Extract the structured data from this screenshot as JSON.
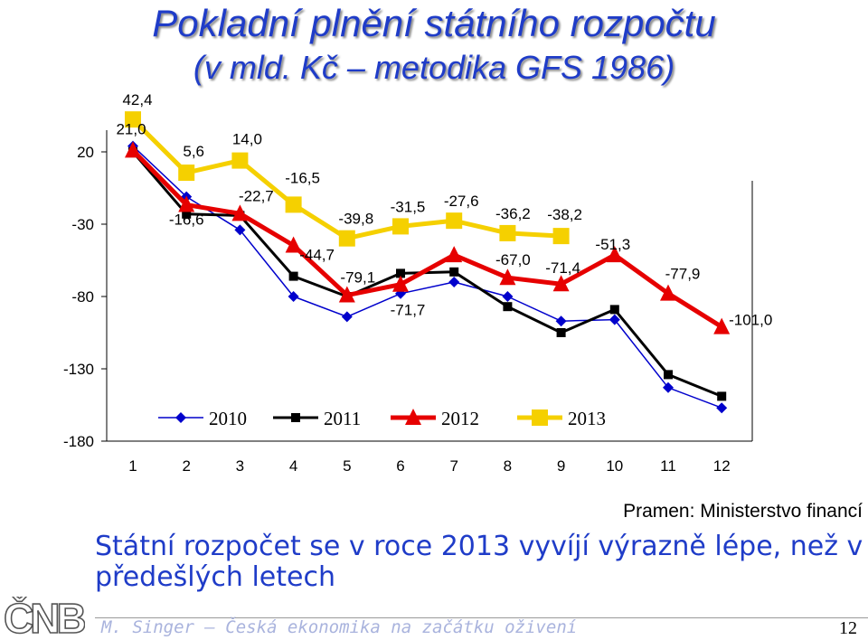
{
  "slide": {
    "title_line1": "Pokladní plnění státního rozpočtu",
    "title_line2": "(v mld. Kč – metodika GFS 1986)",
    "source": "Pramen: Ministerstvo financí",
    "conclusion": "Státní rozpočet se v roce 2013 vyvíjí výrazně lépe, než v předešlých letech",
    "footer": "M. Singer – Česká ekonomika na začátku oživení",
    "page_number": "12",
    "logo_text": "ČNB"
  },
  "chart_data": {
    "type": "line",
    "title": "Pokladní plnění státního rozpočtu",
    "categories": [
      "1",
      "2",
      "3",
      "4",
      "5",
      "6",
      "7",
      "8",
      "9",
      "10",
      "11",
      "12"
    ],
    "y_ticks": [
      20,
      -30,
      -80,
      -130,
      -180
    ],
    "ylim": [
      -180,
      35
    ],
    "grid": false,
    "legend_position": "inside-bottom",
    "series": [
      {
        "name": "2010",
        "color": "#0000cc",
        "marker": "diamond",
        "values": [
          24,
          -11,
          -34,
          -80,
          -94,
          -78,
          -70,
          -80,
          -97,
          -96,
          -143,
          -157
        ]
      },
      {
        "name": "2011",
        "color": "#000000",
        "marker": "square",
        "values": [
          20,
          -23,
          -24,
          -66,
          -80,
          -64,
          -63,
          -87,
          -105,
          -89,
          -134,
          -149
        ]
      },
      {
        "name": "2012",
        "color": "#e60000",
        "marker": "triangle",
        "values": [
          21.0,
          -16.6,
          -22.7,
          -44.7,
          -79.1,
          -71.7,
          -51.3,
          -67.0,
          -71.4,
          -51.3,
          -77.9,
          -101.0
        ]
      },
      {
        "name": "2013",
        "color": "#f5d000",
        "marker": "square",
        "values": [
          42.4,
          5.6,
          14.0,
          -16.5,
          -39.8,
          -31.5,
          -27.6,
          -36.2,
          -38.2,
          null,
          null,
          null
        ]
      }
    ],
    "data_labels": [
      {
        "text": "42,4",
        "x": 1,
        "series": "2013"
      },
      {
        "text": "21,0",
        "x": 1,
        "series": "2012"
      },
      {
        "text": "5,6",
        "x": 2,
        "series": "2013"
      },
      {
        "text": "14,0",
        "x": 3,
        "series": "2013"
      },
      {
        "text": "-16,5",
        "x": 4,
        "series": "2013"
      },
      {
        "text": "-22,7",
        "x": 3,
        "series": "2012"
      },
      {
        "text": "-16,6",
        "x": 2,
        "series": "2012"
      },
      {
        "text": "-44,7",
        "x": 4,
        "series": "2012"
      },
      {
        "text": "-39,8",
        "x": 5,
        "series": "2013"
      },
      {
        "text": "-31,5",
        "x": 6,
        "series": "2013"
      },
      {
        "text": "-27,6",
        "x": 7,
        "series": "2013"
      },
      {
        "text": "-36,2",
        "x": 8,
        "series": "2013"
      },
      {
        "text": "-38,2",
        "x": 9,
        "series": "2013"
      },
      {
        "text": "-51,3",
        "x": 10,
        "series": "2012"
      },
      {
        "text": "-79,1",
        "x": 5,
        "series": "2012"
      },
      {
        "text": "-67,0",
        "x": 8,
        "series": "2012"
      },
      {
        "text": "-71,4",
        "x": 9,
        "series": "2012"
      },
      {
        "text": "-77,9",
        "x": 11,
        "series": "2012"
      },
      {
        "text": "-71,7",
        "x": 6,
        "series": "2012"
      },
      {
        "text": "-101,0",
        "x": 12,
        "series": "2012"
      }
    ]
  }
}
